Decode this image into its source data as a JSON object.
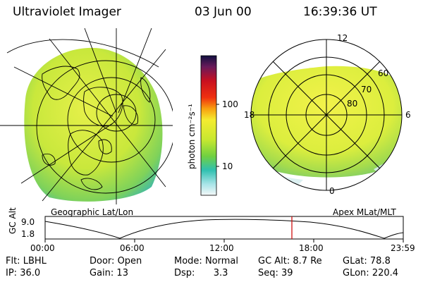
{
  "header": {
    "instrument": "Ultraviolet Imager",
    "date": "03 Jun 00",
    "time": "16:39:36 UT"
  },
  "left_panel": {
    "caption": "Geographic Lat/Lon"
  },
  "right_panel": {
    "caption": "Apex MLat/MLT",
    "mlt_labels": {
      "top": "12",
      "bottom": "0",
      "left": "18",
      "right": "6"
    },
    "mlat_labels": [
      "60",
      "70",
      "80"
    ]
  },
  "colorbar": {
    "unit_label": "photon cm⁻²s⁻¹",
    "ticks": [
      "100",
      "10"
    ],
    "scale": "log"
  },
  "timeline": {
    "axis_label": "GC Alt",
    "y_ticks": [
      "9.0",
      "1.8"
    ],
    "x_ticks": [
      "00:00",
      "06:00",
      "12:00",
      "18:00",
      "23:59"
    ],
    "marker_color": "#d01010"
  },
  "status": {
    "row1": [
      {
        "label": "Flt:",
        "value": "LBHL"
      },
      {
        "label": "Door:",
        "value": "Open"
      },
      {
        "label": "Mode:",
        "value": "Normal"
      },
      {
        "label": "GC Alt:",
        "value": "8.7 Re"
      },
      {
        "label": "GLat:",
        "value": "78.8"
      }
    ],
    "row2": [
      {
        "label": "IP:",
        "value": "36.0"
      },
      {
        "label": "Gain:",
        "value": "13"
      },
      {
        "label": "Dsp:",
        "value": "3.3"
      },
      {
        "label": "Seq:",
        "value": "39"
      },
      {
        "label": "GLon:",
        "value": "220.4"
      }
    ]
  }
}
